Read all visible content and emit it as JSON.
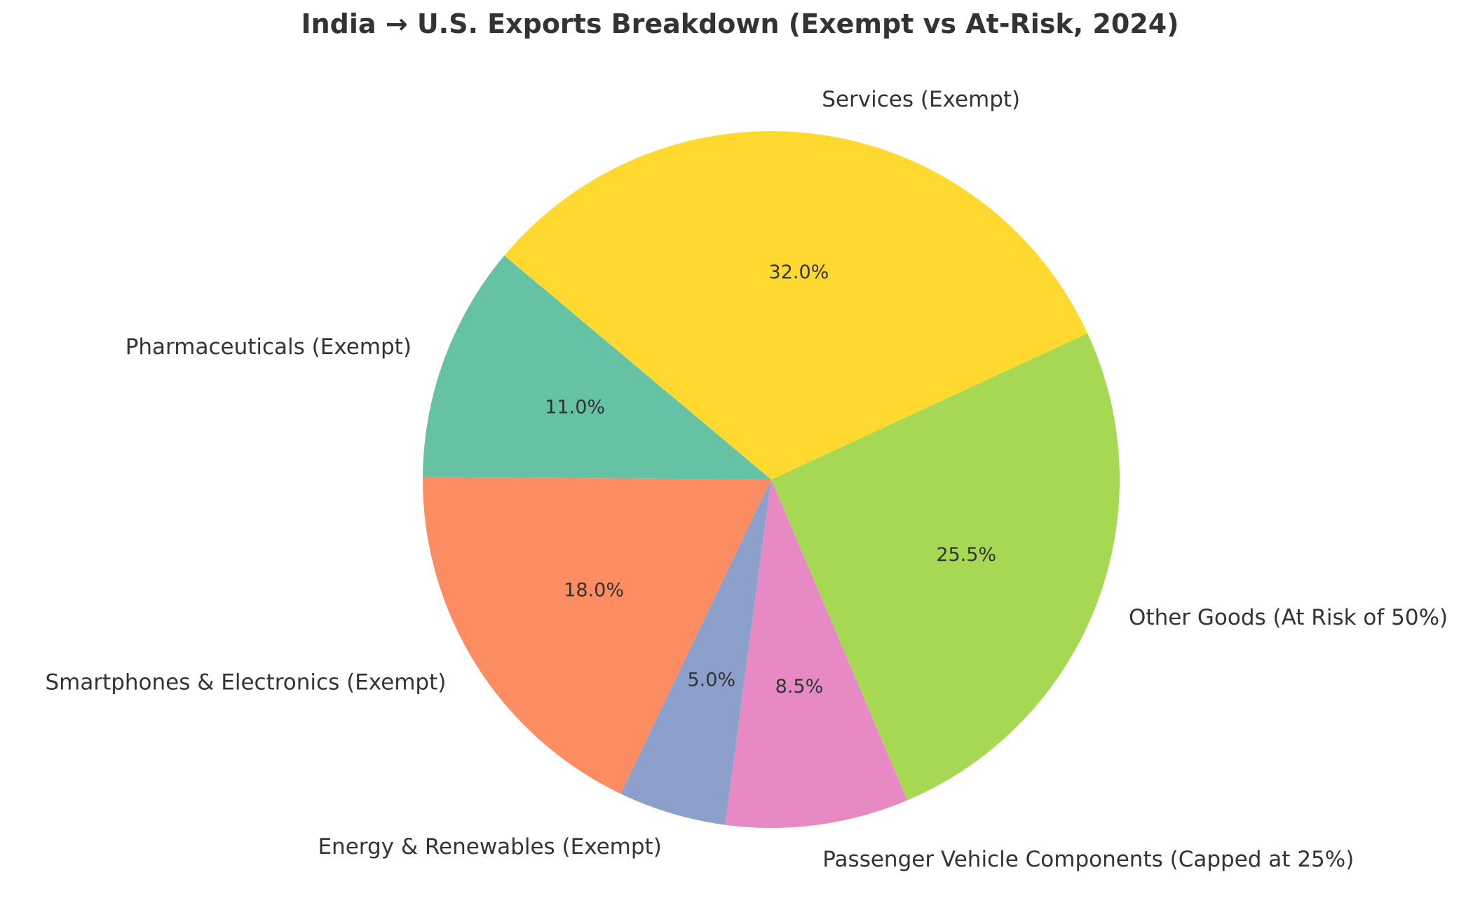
{
  "chart_data": {
    "type": "pie",
    "title": "India → U.S. Exports Breakdown (Exempt vs At-Risk, 2024)",
    "start_angle_deg": 140,
    "direction": "counterclockwise",
    "legend": "none",
    "slices": [
      {
        "label": "Pharmaceuticals (Exempt)",
        "value": 11.0,
        "pct_text": "11.0%",
        "color": "#66c2a5"
      },
      {
        "label": "Smartphones & Electronics (Exempt)",
        "value": 18.0,
        "pct_text": "18.0%",
        "color": "#fc8d62"
      },
      {
        "label": "Energy & Renewables (Exempt)",
        "value": 5.0,
        "pct_text": "5.0%",
        "color": "#8da0cb"
      },
      {
        "label": "Passenger Vehicle Components (Capped at 25%)",
        "value": 8.5,
        "pct_text": "8.5%",
        "color": "#e78ac3"
      },
      {
        "label": "Other Goods (At Risk of 50%)",
        "value": 25.5,
        "pct_text": "25.5%",
        "color": "#a6d854"
      },
      {
        "label": "Services (Exempt)",
        "value": 32.0,
        "pct_text": "32.0%",
        "color": "#ffd92f"
      }
    ]
  }
}
